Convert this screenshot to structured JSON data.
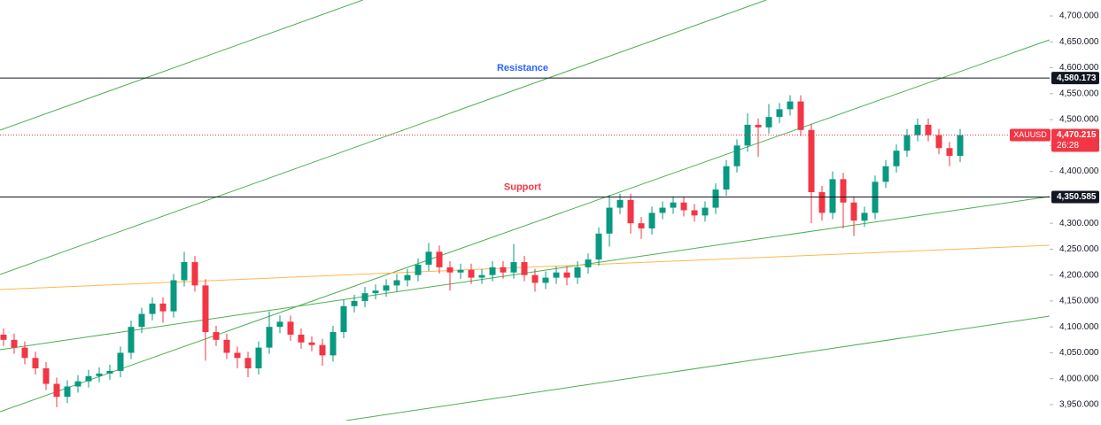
{
  "chart_data": {
    "type": "candlestick",
    "up_color": "#089981",
    "down_color": "#f23645",
    "ylim": [
      3919.2,
      4730.8
    ],
    "yticks": [
      {
        "value": 3950,
        "label": "3,950.000"
      },
      {
        "value": 4000,
        "label": "4,000.000"
      },
      {
        "value": 4050,
        "label": "4,050.000"
      },
      {
        "value": 4100,
        "label": "4,100.000"
      },
      {
        "value": 4150,
        "label": "4,150.000"
      },
      {
        "value": 4200,
        "label": "4,200.000"
      },
      {
        "value": 4250,
        "label": "4,250.000"
      },
      {
        "value": 4300,
        "label": "4,300.000"
      },
      {
        "value": 4350,
        "label": "4,350.000"
      },
      {
        "value": 4400,
        "label": "4,400.000"
      },
      {
        "value": 4450,
        "label": "4,450.000"
      },
      {
        "value": 4500,
        "label": "4,500.000"
      },
      {
        "value": 4550,
        "label": "4,550.000"
      },
      {
        "value": 4600,
        "label": "4,600.000"
      },
      {
        "value": 4650,
        "label": "4,650.000"
      },
      {
        "value": 4700,
        "label": "4,700.000"
      }
    ],
    "open": [
      4085,
      4075,
      4060,
      4040,
      4020,
      3990,
      3965,
      3985,
      3995,
      4005,
      4010,
      4015,
      4050,
      4100,
      4125,
      4145,
      4130,
      4190,
      4225,
      4180,
      4090,
      4075,
      4050,
      4040,
      4020,
      4060,
      4100,
      4110,
      4085,
      4070,
      4065,
      4045,
      4090,
      4140,
      4150,
      4165,
      4170,
      4180,
      4190,
      4200,
      4220,
      4245,
      4215,
      4205,
      4210,
      4195,
      4200,
      4215,
      4205,
      4225,
      4200,
      4185,
      4195,
      4205,
      4195,
      4215,
      4230,
      4280,
      4330,
      4345,
      4300,
      4290,
      4320,
      4330,
      4340,
      4325,
      4315,
      4330,
      4365,
      4410,
      4450,
      4490,
      4485,
      4505,
      4520,
      4535,
      4480,
      4360,
      4320,
      4385,
      4340,
      4305,
      4320,
      4380,
      4410,
      4440,
      4470,
      4490,
      4470,
      4445,
      4430
    ],
    "high": [
      4097,
      4087,
      4072,
      4052,
      4032,
      4002,
      3997,
      4007,
      4017,
      4022,
      4027,
      4062,
      4112,
      4137,
      4157,
      4157,
      4202,
      4245,
      4237,
      4192,
      4102,
      4087,
      4062,
      4052,
      4072,
      4130,
      4122,
      4122,
      4097,
      4082,
      4077,
      4102,
      4152,
      4162,
      4177,
      4182,
      4192,
      4202,
      4212,
      4232,
      4262,
      4257,
      4227,
      4222,
      4222,
      4212,
      4227,
      4227,
      4260,
      4237,
      4212,
      4207,
      4217,
      4217,
      4227,
      4242,
      4292,
      4355,
      4357,
      4357,
      4312,
      4332,
      4342,
      4352,
      4352,
      4337,
      4342,
      4377,
      4422,
      4462,
      4512,
      4502,
      4530,
      4532,
      4547,
      4547,
      4492,
      4372,
      4400,
      4397,
      4352,
      4332,
      4392,
      4422,
      4452,
      4482,
      4502,
      4502,
      4482,
      4457,
      4482
    ],
    "low": [
      4063,
      4048,
      4028,
      4008,
      3978,
      3945,
      3953,
      3973,
      3983,
      3993,
      3998,
      4003,
      4038,
      4088,
      4113,
      4108,
      4118,
      4178,
      4168,
      4035,
      4063,
      4038,
      4020,
      4003,
      4008,
      4048,
      4088,
      4073,
      4058,
      4053,
      4025,
      4033,
      4078,
      4128,
      4138,
      4153,
      4158,
      4168,
      4178,
      4188,
      4208,
      4203,
      4170,
      4193,
      4183,
      4183,
      4188,
      4193,
      4193,
      4188,
      4168,
      4173,
      4183,
      4180,
      4183,
      4203,
      4218,
      4255,
      4318,
      4280,
      4270,
      4278,
      4308,
      4318,
      4313,
      4303,
      4303,
      4318,
      4353,
      4398,
      4438,
      4428,
      4473,
      4493,
      4508,
      4468,
      4300,
      4305,
      4308,
      4290,
      4275,
      4293,
      4308,
      4368,
      4398,
      4428,
      4458,
      4458,
      4433,
      4410,
      4418
    ],
    "close": [
      4075,
      4060,
      4040,
      4020,
      3990,
      3965,
      3985,
      3995,
      4005,
      4010,
      4015,
      4050,
      4100,
      4125,
      4145,
      4130,
      4190,
      4225,
      4180,
      4090,
      4075,
      4050,
      4040,
      4020,
      4060,
      4100,
      4110,
      4085,
      4070,
      4065,
      4045,
      4090,
      4140,
      4150,
      4165,
      4170,
      4180,
      4190,
      4200,
      4220,
      4245,
      4215,
      4205,
      4210,
      4195,
      4200,
      4215,
      4205,
      4225,
      4200,
      4185,
      4195,
      4205,
      4195,
      4215,
      4230,
      4280,
      4330,
      4345,
      4300,
      4290,
      4320,
      4330,
      4340,
      4325,
      4315,
      4330,
      4365,
      4410,
      4450,
      4490,
      4485,
      4505,
      4520,
      4535,
      4480,
      4360,
      4320,
      4385,
      4340,
      4305,
      4320,
      4380,
      4410,
      4440,
      4470,
      4490,
      4470,
      4445,
      4430,
      4470
    ],
    "levels": [
      {
        "name": "Resistance",
        "value": 4580.173,
        "value_label": "4,580.173",
        "color": "#2962ff"
      },
      {
        "name": "Support",
        "value": 4350.585,
        "value_label": "4,350.585",
        "color": "#f23645"
      }
    ],
    "current_price": {
      "symbol": "XAUUSD",
      "value": 4470.215,
      "value_label": "4,470.215",
      "countdown": "26:28",
      "color": "#f23645"
    },
    "trendlines": [
      {
        "color": "#4caf50",
        "x": [
          -0.33,
          33.8
        ],
        "y": [
          4479.6,
          4730.8
        ]
      },
      {
        "color": "#4caf50",
        "x": [
          -0.33,
          71.75
        ],
        "y": [
          4201.1,
          4730.8
        ]
      },
      {
        "color": "#4caf50",
        "x": [
          -0.33,
          98.4
        ],
        "y": [
          3936.3,
          4653.9
        ]
      },
      {
        "color": "#4caf50",
        "x": [
          -0.33,
          98.4
        ],
        "y": [
          4055.9,
          4351.5
        ]
      },
      {
        "color": "#4caf50",
        "x": [
          32.2,
          98.4
        ],
        "y": [
          3919.2,
          4120.8
        ]
      },
      {
        "color": "#ffb74d",
        "x": [
          -0.33,
          98.4
        ],
        "y": [
          4172.1,
          4257.5
        ]
      }
    ]
  }
}
